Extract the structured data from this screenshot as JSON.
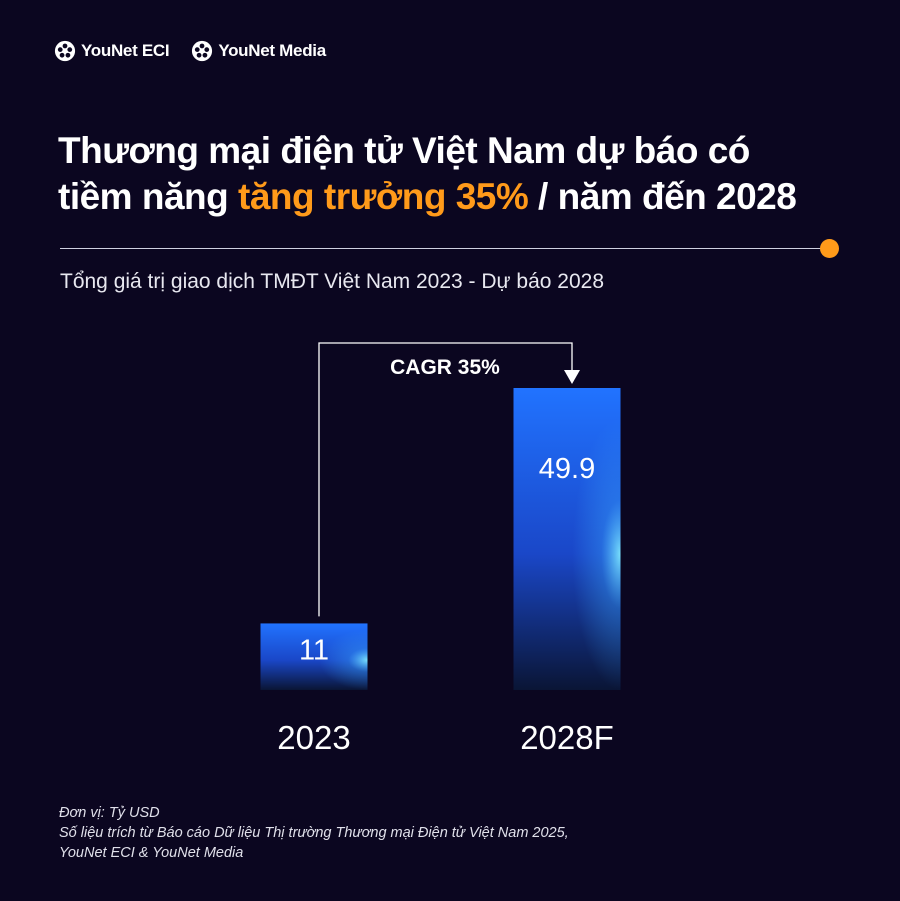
{
  "logos": [
    "YouNet ECI",
    "YouNet Media"
  ],
  "title": {
    "line1": "Thương mại điện tử Việt Nam dự báo có",
    "line2_pre": "tiềm năng ",
    "line2_highlight": "tăng trưởng 35%",
    "line2_post": " / năm đến 2028"
  },
  "colors": {
    "background": "#0b0620",
    "accent": "#ff9a1a",
    "bar_top": "#1f6bff",
    "bar_bottom": "#0a1535"
  },
  "chart_data": {
    "type": "bar",
    "title": "Tổng giá trị giao dịch TMĐT Việt Nam 2023 - Dự báo 2028",
    "categories": [
      "2023",
      "2028F"
    ],
    "values": [
      11,
      49.9
    ],
    "value_labels": [
      "11",
      "49.9"
    ],
    "annotation": "CAGR 35%",
    "grid": false,
    "legend": "none"
  },
  "footnote": {
    "unit": "Đơn vị: Tỷ USD",
    "source_line1": "Số liệu trích từ Báo cáo Dữ liệu Thị trường Thương mại Điện tử Việt Nam 2025,",
    "source_line2": "YouNet ECI & YouNet Media"
  }
}
